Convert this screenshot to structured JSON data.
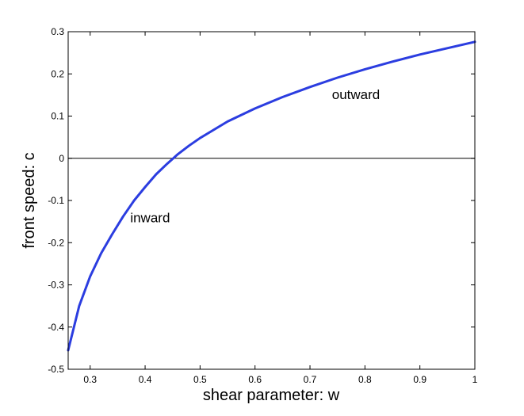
{
  "chart_data": {
    "type": "line",
    "title": "",
    "xlabel": "shear parameter: w",
    "ylabel": "front speed: c",
    "xlim": [
      0.26,
      1.0
    ],
    "ylim": [
      -0.5,
      0.3
    ],
    "xticks": [
      0.3,
      0.4,
      0.5,
      0.6,
      0.7,
      0.8,
      0.9,
      1
    ],
    "xtick_labels": [
      "0.3",
      "0.4",
      "0.5",
      "0.6",
      "0.7",
      "0.8",
      "0.9",
      "1"
    ],
    "yticks": [
      -0.5,
      -0.4,
      -0.3,
      -0.2,
      -0.1,
      0,
      0.1,
      0.2,
      0.3
    ],
    "ytick_labels": [
      "-0.5",
      "-0.4",
      "-0.3",
      "-0.2",
      "-0.1",
      "0",
      "0.1",
      "0.2",
      "0.3"
    ],
    "grid": false,
    "reference_line": {
      "y": 0,
      "color": "#000000"
    },
    "series": [
      {
        "color": "#2b3de0",
        "x": [
          0.26,
          0.28,
          0.3,
          0.32,
          0.34,
          0.36,
          0.38,
          0.4,
          0.42,
          0.44,
          0.46,
          0.48,
          0.5,
          0.55,
          0.6,
          0.65,
          0.7,
          0.75,
          0.8,
          0.85,
          0.9,
          0.95,
          1.0
        ],
        "y": [
          -0.455,
          -0.35,
          -0.28,
          -0.225,
          -0.18,
          -0.138,
          -0.1,
          -0.068,
          -0.038,
          -0.013,
          0.01,
          0.03,
          0.048,
          0.087,
          0.118,
          0.145,
          0.169,
          0.191,
          0.211,
          0.229,
          0.246,
          0.261,
          0.276
        ]
      }
    ],
    "annotations": [
      {
        "text": "outward",
        "x": 0.74,
        "y": 0.14
      },
      {
        "text": "inward",
        "x": 0.373,
        "y": -0.152
      }
    ]
  }
}
